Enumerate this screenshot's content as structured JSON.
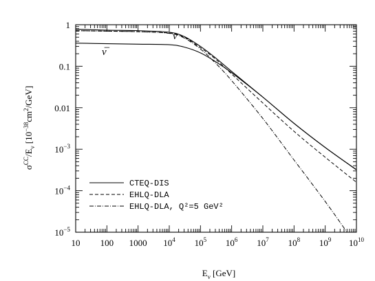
{
  "chart_data": {
    "type": "line",
    "title": "",
    "xlabel": "Eν [GeV]",
    "ylabel": "σCC/Eν [10⁻³⁸ cm²/GeV]",
    "xscale": "log",
    "yscale": "log",
    "xlim": [
      10,
      10000000000
    ],
    "ylim": [
      1e-05,
      1
    ],
    "grid": false,
    "legend_position": "bottom-left",
    "x_tick_labels": [
      "10",
      "100",
      "1000",
      "10⁴",
      "10⁵",
      "10⁶",
      "10⁷",
      "10⁸",
      "10⁹",
      "10¹⁰"
    ],
    "y_tick_labels": [
      "10⁻⁵",
      "10⁻⁴",
      "10⁻³",
      "0.01",
      "0.1",
      "1"
    ],
    "series": [
      {
        "name": "CTEQ-DIS",
        "label": "ν",
        "style": "solid",
        "x": [
          10,
          100,
          1000,
          10000,
          30000,
          100000,
          300000,
          1000000,
          10000000,
          100000000,
          1000000000,
          10000000000
        ],
        "y": [
          0.78,
          0.74,
          0.72,
          0.66,
          0.52,
          0.3,
          0.16,
          0.075,
          0.018,
          0.0042,
          0.0011,
          0.00032
        ]
      },
      {
        "name": "CTEQ-DIS",
        "label": "ν̅",
        "style": "solid",
        "x": [
          10,
          100,
          1000,
          10000,
          30000,
          100000,
          300000,
          1000000,
          10000000,
          100000000,
          1000000000,
          10000000000
        ],
        "y": [
          0.36,
          0.35,
          0.34,
          0.33,
          0.29,
          0.21,
          0.13,
          0.07,
          0.018,
          0.0042,
          0.0011,
          0.00032
        ]
      },
      {
        "name": "EHLQ-DLA",
        "style": "dashed",
        "x": [
          10,
          100,
          1000,
          10000,
          30000,
          100000,
          300000,
          1000000,
          10000000,
          100000000,
          1000000000,
          10000000000
        ],
        "y": [
          0.72,
          0.7,
          0.68,
          0.63,
          0.5,
          0.28,
          0.15,
          0.065,
          0.013,
          0.0027,
          0.00064,
          0.00016
        ]
      },
      {
        "name": "EHLQ-DLA, Q²=5 GeV²",
        "style": "dashdot",
        "x": [
          10,
          100,
          1000,
          10000,
          30000,
          100000,
          300000,
          1000000,
          10000000,
          100000000,
          1000000000,
          5000000000
        ],
        "y": [
          0.72,
          0.7,
          0.68,
          0.62,
          0.48,
          0.26,
          0.12,
          0.045,
          0.0055,
          0.00055,
          5.5e-05,
          1e-05
        ]
      }
    ],
    "annotations": [
      "ν",
      "ν̅"
    ]
  }
}
